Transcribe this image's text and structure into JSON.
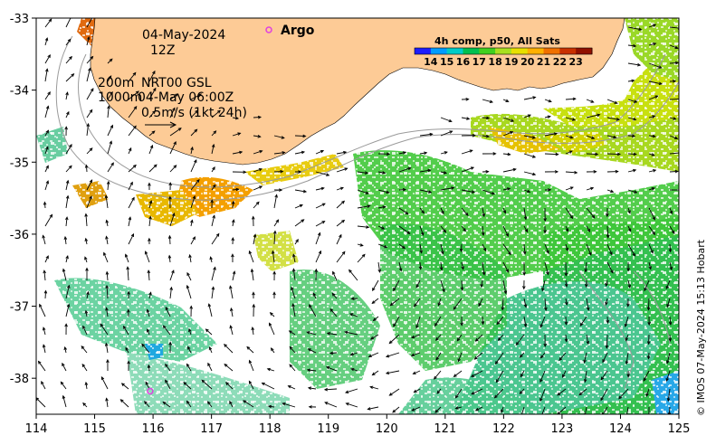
{
  "map": {
    "date": "04-May-2024",
    "hour": "12Z",
    "isobath_200": "200m",
    "isobath_1000": "1000m",
    "product": "NRT00 GSL",
    "altimetry_time": "04-May 06:00Z",
    "scale_label": "0.5m/s (1kt 24h)",
    "argo_label": "Argo",
    "colorbar_title": "4h comp, p50, All Sats",
    "colorbar_ticks": [
      "14",
      "15",
      "16",
      "17",
      "18",
      "19",
      "20",
      "21",
      "22",
      "23"
    ],
    "colorbar_colors": [
      "#1c1cff",
      "#009cff",
      "#00ccc8",
      "#00c050",
      "#40d020",
      "#a8e020",
      "#e8e000",
      "#ffb000",
      "#f07000",
      "#c83000",
      "#901000"
    ],
    "copyright": "© IMOS 07-May-2024 15:13 Hobart",
    "land_color": "#fdcb96",
    "x_ticks": [
      "114",
      "115",
      "116",
      "117",
      "118",
      "119",
      "120",
      "121",
      "122",
      "123",
      "124",
      "125"
    ],
    "y_ticks": [
      "-33",
      "-34",
      "-35",
      "-36",
      "-37",
      "-38"
    ]
  },
  "chart_data": {
    "type": "map",
    "x_range": [
      114,
      125
    ],
    "y_range": [
      -38.5,
      -33
    ],
    "argo_floats": [
      {
        "lon": 117.95,
        "lat": -33.18
      },
      {
        "lon": 115.95,
        "lat": -38.18
      }
    ]
  }
}
